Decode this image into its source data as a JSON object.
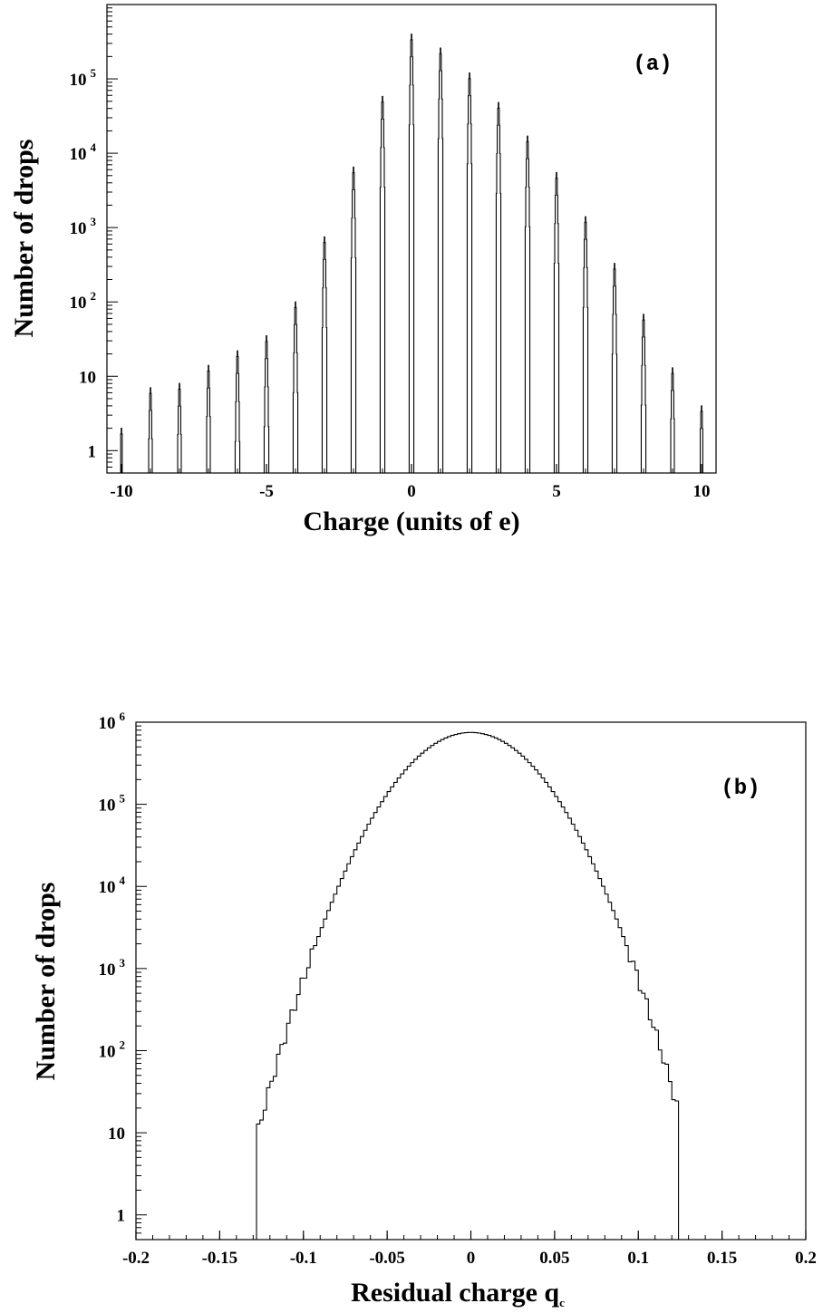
{
  "chart_data": [
    {
      "type": "histogram",
      "panel_label": "(a)",
      "xlabel": "Charge (units of e)",
      "ylabel": "Number of drops",
      "xlim": [
        -10.5,
        10.5
      ],
      "ylim": [
        0.5,
        1000000
      ],
      "yscale": "log",
      "x_ticks": [
        -10,
        -5,
        0,
        5,
        10
      ],
      "x_tick_labels": [
        "-10",
        "-5",
        "0",
        "5",
        "10"
      ],
      "y_ticks": [
        1,
        10,
        100,
        1000,
        10000,
        100000
      ],
      "y_tick_labels": [
        {
          "base": "1",
          "exp": ""
        },
        {
          "base": "10",
          "exp": ""
        },
        {
          "base": "10",
          "exp": "2"
        },
        {
          "base": "10",
          "exp": "3"
        },
        {
          "base": "10",
          "exp": "4"
        },
        {
          "base": "10",
          "exp": "5"
        }
      ],
      "peaks": {
        "x": [
          -10,
          -9,
          -8,
          -7,
          -6,
          -5,
          -4,
          -3,
          -2,
          -1,
          0,
          1,
          2,
          3,
          4,
          5,
          6,
          7,
          8,
          9,
          10
        ],
        "peak_values": [
          2,
          7,
          8,
          14,
          22,
          35,
          100,
          750,
          6500,
          58000,
          400000,
          260000,
          120000,
          48000,
          17000,
          5500,
          1400,
          330,
          68,
          13,
          4
        ]
      }
    },
    {
      "type": "histogram",
      "panel_label": "(b)",
      "xlabel": "Residual charge q",
      "xlabel_sub": "c",
      "ylabel": "Number of drops",
      "xlim": [
        -0.2,
        0.2
      ],
      "ylim": [
        0.5,
        1000000
      ],
      "yscale": "log",
      "x_ticks": [
        -0.2,
        -0.15,
        -0.1,
        -0.05,
        0,
        0.05,
        0.1,
        0.15,
        0.2
      ],
      "x_tick_labels": [
        "-0.2",
        "-0.15",
        "-0.1",
        "-0.05",
        "0",
        "0.05",
        "0.1",
        "0.15",
        "0.2"
      ],
      "y_ticks": [
        1,
        10,
        100,
        1000,
        10000,
        100000,
        1000000
      ],
      "y_tick_labels": [
        {
          "base": "1",
          "exp": ""
        },
        {
          "base": "10",
          "exp": ""
        },
        {
          "base": "10",
          "exp": "2"
        },
        {
          "base": "10",
          "exp": "3"
        },
        {
          "base": "10",
          "exp": "4"
        },
        {
          "base": "10",
          "exp": "5"
        },
        {
          "base": "10",
          "exp": "6"
        }
      ],
      "distribution": {
        "center": 0,
        "peak_count": 750000,
        "sigma": 0.0269,
        "bin_width": 0.002,
        "range": [
          -0.128,
          0.124
        ]
      }
    }
  ]
}
